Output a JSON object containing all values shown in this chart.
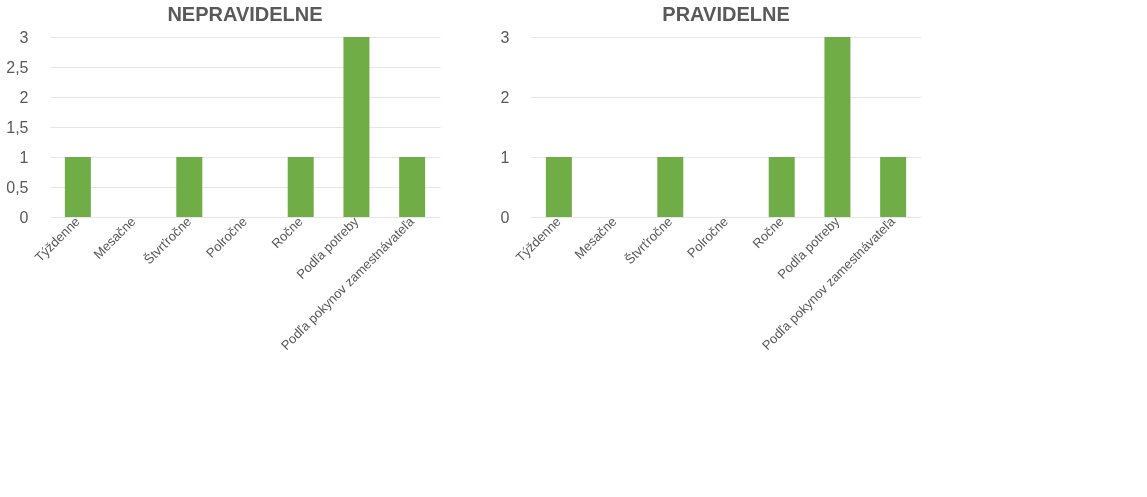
{
  "chart_data": [
    {
      "type": "bar",
      "title": "NEPRAVIDELNE",
      "categories": [
        "Týždenne",
        "Mesačne",
        "Štvrťročne",
        "Polročne",
        "Ročne",
        "Podľa potreby",
        "Podľa pokynov zamestnávateľa"
      ],
      "values": [
        1,
        0,
        1,
        0,
        1,
        3,
        1
      ],
      "color": "#70ad47",
      "ylim": [
        0,
        3
      ],
      "yticks": [
        0,
        {
          "value": 0.5,
          "label": "0,5"
        },
        1,
        {
          "value": 1.5,
          "label": "1,5"
        },
        2,
        {
          "value": 2.5,
          "label": "2,5"
        },
        3
      ],
      "grid": "y"
    },
    {
      "type": "bar",
      "title": "PRAVIDELNE",
      "categories": [
        "Týždenne",
        "Mesačne",
        "Štvrťročne",
        "Polročne",
        "Ročne",
        "Podľa potreby",
        "Podľa pokynov zamestnávateľa"
      ],
      "values": [
        1,
        0,
        1,
        0,
        1,
        3,
        1
      ],
      "color": "#70ad47",
      "ylim": [
        0,
        3
      ],
      "yticks": [
        0,
        1,
        2,
        3
      ],
      "grid": "y"
    }
  ]
}
